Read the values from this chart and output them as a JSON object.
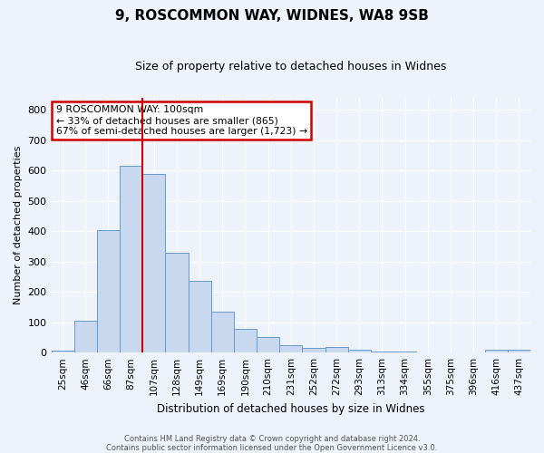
{
  "title1": "9, ROSCOMMON WAY, WIDNES, WA8 9SB",
  "title2": "Size of property relative to detached houses in Widnes",
  "xlabel": "Distribution of detached houses by size in Widnes",
  "ylabel": "Number of detached properties",
  "categories": [
    "25sqm",
    "46sqm",
    "66sqm",
    "87sqm",
    "107sqm",
    "128sqm",
    "149sqm",
    "169sqm",
    "190sqm",
    "210sqm",
    "231sqm",
    "252sqm",
    "272sqm",
    "293sqm",
    "313sqm",
    "334sqm",
    "355sqm",
    "375sqm",
    "396sqm",
    "416sqm",
    "437sqm"
  ],
  "values": [
    7,
    106,
    405,
    617,
    590,
    330,
    237,
    136,
    79,
    51,
    24,
    16,
    18,
    9,
    5,
    3,
    0,
    0,
    0,
    9,
    9
  ],
  "bar_color": "#c8d8ee",
  "bar_edge_color": "#6699cc",
  "vline_x": 3.5,
  "vline_color": "#cc0000",
  "annotation_text": "9 ROSCOMMON WAY: 100sqm\n← 33% of detached houses are smaller (865)\n67% of semi-detached houses are larger (1,723) →",
  "annotation_box_color": "#ffffff",
  "annotation_box_edge": "#cc0000",
  "footer1": "Contains HM Land Registry data © Crown copyright and database right 2024.",
  "footer2": "Contains public sector information licensed under the Open Government Licence v3.0.",
  "ylim": [
    0,
    840
  ],
  "yticks": [
    0,
    100,
    200,
    300,
    400,
    500,
    600,
    700,
    800
  ],
  "background_color": "#eef2fa"
}
